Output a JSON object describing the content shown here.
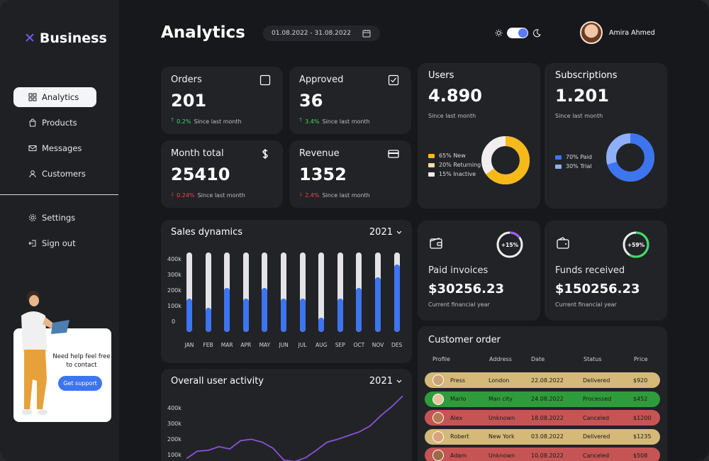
{
  "app": {
    "logo_text": "Business"
  },
  "sidebar": {
    "items": [
      {
        "label": "Analytics",
        "icon": "dashboard-icon"
      },
      {
        "label": "Products",
        "icon": "bag-icon"
      },
      {
        "label": "Messages",
        "icon": "mail-icon"
      },
      {
        "label": "Customers",
        "icon": "user-icon"
      }
    ],
    "bottom_items": [
      {
        "label": "Settings",
        "icon": "gear-icon"
      },
      {
        "label": "Sign out",
        "icon": "sign-out-icon"
      }
    ],
    "help": {
      "text": "Need help feel free to contact",
      "button": "Get support"
    }
  },
  "header": {
    "title": "Analytics",
    "date_range": "01.08.2022 - 31.08.2022",
    "user_name": "Amira Ahmed"
  },
  "kpis": {
    "orders": {
      "title": "Orders",
      "value": "201",
      "change": "0.2%",
      "since": "Since last month",
      "trend": "up"
    },
    "approved": {
      "title": "Approved",
      "value": "36",
      "change": "3.4%",
      "since": "Since last month",
      "trend": "up"
    },
    "month_total": {
      "title": "Month total",
      "value": "25410",
      "change": "0.24%",
      "since": "Since last month",
      "trend": "down"
    },
    "revenue": {
      "title": "Revenue",
      "value": "1352",
      "change": "2.4%",
      "since": "Since last month",
      "trend": "down"
    }
  },
  "users": {
    "title": "Users",
    "value": "4.890",
    "sub": "Since last month",
    "legend": [
      "65% New",
      "20% Returning",
      "15% Inactive"
    ],
    "colors": {
      "new": "#f5b91a",
      "returning": "#f6dca5",
      "inactive": "#f2eef0"
    }
  },
  "subscriptions": {
    "title": "Subscriptions",
    "value": "1.201",
    "sub": "Since last month",
    "legend": [
      "70% Paid",
      "30% Trial"
    ],
    "colors": {
      "paid": "#3d74f0",
      "trial": "#8db0f8"
    }
  },
  "sales_dynamics": {
    "title": "Sales dynamics",
    "year": "2021",
    "y_ticks": [
      "400k",
      "300k",
      "200k",
      "100k",
      "0"
    ]
  },
  "paid_invoices": {
    "title": "Paid invoices",
    "value": "$30256.23",
    "sub": "Current financial year",
    "ring_label": "+15%",
    "progress": 0.15
  },
  "funds_received": {
    "title": "Funds received",
    "value": "$150256.23",
    "sub": "Current financial year",
    "ring_label": "+59%",
    "progress": 0.59
  },
  "user_activity": {
    "title": "Overall user activity",
    "year": "2021",
    "y_ticks": [
      "400k",
      "300k",
      "200k",
      "100k"
    ]
  },
  "customer_order": {
    "title": "Customer order",
    "columns": [
      "Profile",
      "Address",
      "Date",
      "Status",
      "Price"
    ],
    "rows": [
      {
        "name": "Press",
        "address": "London",
        "date": "22.08.2022",
        "status": "Delivered",
        "price": "$920",
        "color": "#d4b978"
      },
      {
        "name": "Marlo",
        "address": "Man city",
        "date": "24.08.2022",
        "status": "Processed",
        "price": "$452",
        "color": "#2f9c3b"
      },
      {
        "name": "Alex",
        "address": "Unknown",
        "date": "18.08.2022",
        "status": "Canceled",
        "price": "$1200",
        "color": "#c65454"
      },
      {
        "name": "Robert",
        "address": "New York",
        "date": "03.08.2022",
        "status": "Delivered",
        "price": "$1235",
        "color": "#d4b978"
      },
      {
        "name": "Adam",
        "address": "Unknown",
        "date": "10.08.2022",
        "status": "Canceled",
        "price": "$508",
        "color": "#c65454"
      }
    ]
  },
  "chart_data": [
    {
      "type": "bar",
      "title": "Sales dynamics",
      "categories": [
        "JAN",
        "FEB",
        "MAR",
        "APR",
        "MAY",
        "JUN",
        "JUL",
        "AUG",
        "SEP",
        "OCT",
        "NOV",
        "DES"
      ],
      "values": [
        210,
        150,
        275,
        210,
        275,
        210,
        210,
        90,
        210,
        275,
        345,
        425
      ],
      "max": 500,
      "ylim": [
        0,
        500
      ],
      "ylabel": ""
    },
    {
      "type": "line",
      "title": "Overall user activity",
      "x": [
        0,
        1,
        2,
        3,
        4,
        5,
        6,
        7,
        8,
        9,
        10,
        11,
        12,
        13,
        14,
        15,
        16,
        17,
        18,
        19,
        20
      ],
      "values": [
        40,
        90,
        95,
        120,
        105,
        160,
        170,
        150,
        110,
        30,
        20,
        45,
        95,
        150,
        170,
        195,
        220,
        260,
        330,
        390,
        460
      ],
      "ylim": [
        0,
        500
      ]
    }
  ]
}
